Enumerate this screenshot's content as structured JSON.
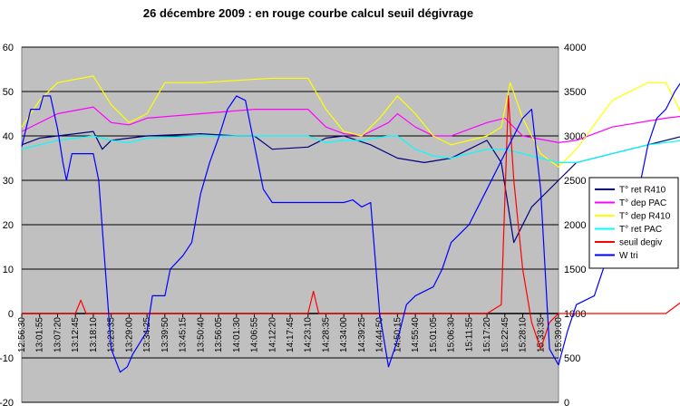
{
  "chart_data": {
    "type": "line",
    "title": "26 décembre 2009 : en rouge courbe calcul seuil dégivrage",
    "y_left": {
      "min": -20,
      "max": 60,
      "ticks": [
        -20,
        -10,
        0,
        10,
        20,
        30,
        40,
        50,
        60
      ]
    },
    "y_right": {
      "min": 0,
      "max": 4000,
      "ticks": [
        0,
        500,
        1000,
        1500,
        2000,
        2500,
        3000,
        3500,
        4000
      ]
    },
    "x_ticks": [
      "12:56:30",
      "13:01:55",
      "13:07:20",
      "13:12:45",
      "13:18:10",
      "13:23:35",
      "13:29:00",
      "13:34:25",
      "13:39:50",
      "13:45:15",
      "13:50:40",
      "13:56:05",
      "14:01:30",
      "14:06:55",
      "14:12:20",
      "14:17:45",
      "14:23:10",
      "14:28:35",
      "14:34:00",
      "14:39:25",
      "14:44:50",
      "14:50:15",
      "14:55:40",
      "15:01:05",
      "15:06:30",
      "15:11:55",
      "15:17:20",
      "15:22:45",
      "15:28:10",
      "15:33:35",
      "15:39:00"
    ],
    "grid": true,
    "plot_background": "#c0c0c0",
    "legend_position": "right",
    "series": [
      {
        "name": "T° ret R410",
        "color": "#000080",
        "axis": "left",
        "points": [
          [
            0,
            38
          ],
          [
            1,
            39.5
          ],
          [
            3,
            40.5
          ],
          [
            4,
            41
          ],
          [
            4.5,
            37
          ],
          [
            5,
            39
          ],
          [
            7,
            40
          ],
          [
            10,
            40.5
          ],
          [
            12,
            40
          ],
          [
            13,
            40
          ],
          [
            14,
            37
          ],
          [
            16,
            37.5
          ],
          [
            17,
            39.5
          ],
          [
            18,
            40
          ],
          [
            19.5,
            38
          ],
          [
            21,
            35
          ],
          [
            22.5,
            34
          ],
          [
            24,
            35
          ],
          [
            26,
            39
          ],
          [
            26.8,
            34
          ],
          [
            27.5,
            16
          ],
          [
            28.5,
            24
          ],
          [
            30,
            30
          ],
          [
            31,
            34
          ],
          [
            33,
            36
          ],
          [
            35,
            38
          ],
          [
            37,
            40
          ],
          [
            38,
            40
          ],
          [
            40,
            38
          ],
          [
            42,
            39
          ],
          [
            44,
            40
          ],
          [
            45,
            40
          ],
          [
            46,
            39
          ]
        ]
      },
      {
        "name": "T° dep PAC",
        "color": "#ff00ff",
        "axis": "left",
        "points": [
          [
            0,
            41
          ],
          [
            2,
            45
          ],
          [
            4,
            46.5
          ],
          [
            5,
            43
          ],
          [
            6,
            42.5
          ],
          [
            7,
            44
          ],
          [
            10,
            45
          ],
          [
            13,
            46
          ],
          [
            16,
            46
          ],
          [
            17,
            42
          ],
          [
            18,
            40.5
          ],
          [
            19,
            40
          ],
          [
            20.5,
            43
          ],
          [
            21,
            45
          ],
          [
            22,
            42
          ],
          [
            23,
            40
          ],
          [
            24,
            40
          ],
          [
            26,
            43
          ],
          [
            27,
            44
          ],
          [
            28,
            40
          ],
          [
            30,
            38.5
          ],
          [
            31,
            39
          ],
          [
            33,
            42
          ],
          [
            36,
            44
          ],
          [
            38,
            45
          ],
          [
            40,
            44
          ],
          [
            42,
            44
          ],
          [
            44,
            46
          ],
          [
            45,
            46
          ],
          [
            46,
            43
          ]
        ]
      },
      {
        "name": "T° dep R410",
        "color": "#ffff00",
        "axis": "left",
        "points": [
          [
            0,
            42
          ],
          [
            1,
            48
          ],
          [
            2,
            52
          ],
          [
            4,
            53.5
          ],
          [
            5,
            47
          ],
          [
            6,
            43
          ],
          [
            7,
            45
          ],
          [
            8,
            52
          ],
          [
            10,
            52
          ],
          [
            14,
            53
          ],
          [
            16,
            53
          ],
          [
            17,
            46
          ],
          [
            18,
            41
          ],
          [
            19,
            40
          ],
          [
            20,
            44
          ],
          [
            21,
            49
          ],
          [
            22,
            45
          ],
          [
            23,
            40
          ],
          [
            24,
            38
          ],
          [
            26,
            40
          ],
          [
            26.8,
            42
          ],
          [
            27.3,
            52
          ],
          [
            28,
            44
          ],
          [
            29,
            36
          ],
          [
            30,
            33
          ],
          [
            31,
            37
          ],
          [
            33,
            48
          ],
          [
            35,
            52
          ],
          [
            36,
            52
          ],
          [
            37,
            44
          ],
          [
            38,
            42
          ],
          [
            40,
            42
          ],
          [
            42,
            45
          ],
          [
            43,
            50
          ],
          [
            44,
            53
          ],
          [
            45,
            52
          ],
          [
            46,
            47
          ]
        ]
      },
      {
        "name": "T° ret PAC",
        "color": "#00ffff",
        "axis": "left",
        "points": [
          [
            0,
            37
          ],
          [
            2,
            39
          ],
          [
            4,
            40
          ],
          [
            5,
            39
          ],
          [
            6,
            38.5
          ],
          [
            7,
            39.5
          ],
          [
            10,
            40
          ],
          [
            14,
            40
          ],
          [
            16,
            40
          ],
          [
            17,
            38.5
          ],
          [
            18,
            39
          ],
          [
            19,
            39
          ],
          [
            20.5,
            40
          ],
          [
            21,
            40
          ],
          [
            22,
            37
          ],
          [
            23,
            35.5
          ],
          [
            24,
            35
          ],
          [
            26,
            37
          ],
          [
            27,
            37
          ],
          [
            28,
            36
          ],
          [
            30,
            34
          ],
          [
            31,
            34
          ],
          [
            33,
            36
          ],
          [
            35,
            38
          ],
          [
            37,
            39
          ],
          [
            38,
            40
          ],
          [
            40,
            39
          ],
          [
            42,
            39
          ],
          [
            44,
            40
          ],
          [
            45,
            40
          ],
          [
            46,
            39
          ]
        ]
      },
      {
        "name": "seuil degiv",
        "color": "#ff0000",
        "axis": "left",
        "points": [
          [
            0,
            0
          ],
          [
            3,
            0
          ],
          [
            3.3,
            3
          ],
          [
            3.6,
            0
          ],
          [
            10,
            0
          ],
          [
            16,
            0
          ],
          [
            16.3,
            5
          ],
          [
            16.6,
            0
          ],
          [
            26,
            0
          ],
          [
            26.8,
            2
          ],
          [
            27.2,
            49
          ],
          [
            27.5,
            30
          ],
          [
            28,
            10
          ],
          [
            28.5,
            -2
          ],
          [
            29,
            -8
          ],
          [
            29.5,
            -2
          ],
          [
            30,
            0
          ],
          [
            33,
            0
          ],
          [
            36,
            0
          ],
          [
            37,
            3
          ],
          [
            37.3,
            0
          ],
          [
            41,
            0
          ],
          [
            42,
            3
          ],
          [
            42.3,
            0
          ],
          [
            46,
            0
          ]
        ]
      },
      {
        "name": "W tri",
        "color": "#0000ff",
        "axis": "right",
        "points": [
          [
            0,
            2880
          ],
          [
            0.5,
            3300
          ],
          [
            1,
            3300
          ],
          [
            1.2,
            3450
          ],
          [
            1.6,
            3450
          ],
          [
            2,
            3080
          ],
          [
            2.3,
            2700
          ],
          [
            2.5,
            2500
          ],
          [
            2.8,
            2800
          ],
          [
            4,
            2800
          ],
          [
            4.3,
            2500
          ],
          [
            5,
            600
          ],
          [
            5.5,
            340
          ],
          [
            5.9,
            400
          ],
          [
            6.2,
            540
          ],
          [
            7,
            800
          ],
          [
            7.3,
            1200
          ],
          [
            8,
            1200
          ],
          [
            8.3,
            1500
          ],
          [
            9,
            1650
          ],
          [
            9.5,
            1800
          ],
          [
            10,
            2350
          ],
          [
            10.5,
            2700
          ],
          [
            11,
            2980
          ],
          [
            11.5,
            3300
          ],
          [
            12,
            3450
          ],
          [
            12.5,
            3400
          ],
          [
            13,
            2900
          ],
          [
            13.5,
            2400
          ],
          [
            14,
            2250
          ],
          [
            16,
            2250
          ],
          [
            18,
            2250
          ],
          [
            18.5,
            2280
          ],
          [
            19,
            2200
          ],
          [
            19.5,
            2250
          ],
          [
            20,
            1000
          ],
          [
            20.5,
            400
          ],
          [
            21,
            700
          ],
          [
            21.5,
            1100
          ],
          [
            22,
            1200
          ],
          [
            23,
            1300
          ],
          [
            23.5,
            1500
          ],
          [
            24,
            1800
          ],
          [
            25,
            2000
          ],
          [
            26,
            2400
          ],
          [
            27,
            2800
          ],
          [
            28,
            3200
          ],
          [
            28.5,
            3300
          ],
          [
            29,
            2400
          ],
          [
            29.5,
            600
          ],
          [
            30,
            420
          ],
          [
            30.5,
            800
          ],
          [
            31,
            1100
          ],
          [
            32,
            1200
          ],
          [
            32.5,
            1500
          ],
          [
            33,
            1700
          ],
          [
            34,
            2100
          ],
          [
            34.5,
            2400
          ],
          [
            35,
            2900
          ],
          [
            35.5,
            3200
          ],
          [
            36,
            3300
          ],
          [
            36.5,
            3500
          ],
          [
            37,
            3650
          ],
          [
            37.5,
            3350
          ],
          [
            37.8,
            1900
          ],
          [
            38.2,
            400
          ],
          [
            38.6,
            200
          ],
          [
            39,
            500
          ],
          [
            39.5,
            1000
          ],
          [
            40,
            1500
          ],
          [
            40.5,
            2000
          ],
          [
            41,
            2450
          ],
          [
            41.5,
            2900
          ],
          [
            42,
            3300
          ],
          [
            42.5,
            3500
          ],
          [
            43,
            3650
          ],
          [
            43.5,
            3500
          ],
          [
            44,
            3650
          ],
          [
            44.4,
            3650
          ],
          [
            44.8,
            2800
          ],
          [
            45.2,
            2250
          ],
          [
            45.6,
            1000
          ],
          [
            46,
            380
          ]
        ]
      }
    ]
  }
}
